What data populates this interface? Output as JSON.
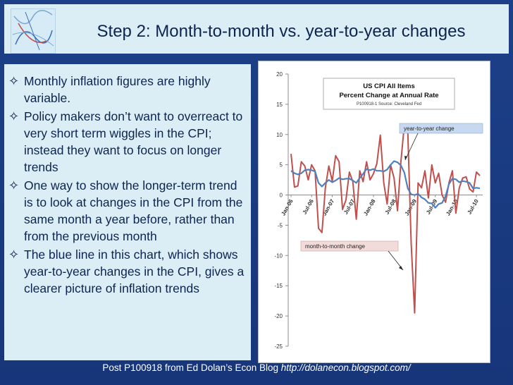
{
  "slide": {
    "title": "Step 2: Month-to-month vs. year-to-year changes",
    "bullets": [
      "Monthly inflation figures are highly variable.",
      "Policy makers don’t want to overreact to very short term wiggles in the CPI; instead they want to focus on longer trends",
      "One way to show the longer-term trend is to look at changes in the CPI from the same month a year before, rather than from the previous month",
      "The blue line in this chart, which shows year-to-year changes in the CPI, gives a clearer picture of inflation trends"
    ],
    "bullet_icon": "four-point-star-icon",
    "footer_text": "Post P100918 from Ed Dolan’s Econ Blog ",
    "footer_url": "http://dolanecon.blogspot.com/"
  },
  "colors": {
    "background": "#1a3c82",
    "panel": "#dbeef5",
    "title_text": "#0d2450",
    "month_line": "#c0504d",
    "year_line": "#4f81bd"
  },
  "chart_data": {
    "type": "line",
    "title": "US CPI All Items",
    "subtitle": "Percent Change at Annual Rate",
    "source": "P100918-1 Source: Cleveland Fed",
    "x": [
      "Jan-06",
      "Feb-06",
      "Mar-06",
      "Apr-06",
      "May-06",
      "Jun-06",
      "Jul-06",
      "Aug-06",
      "Sep-06",
      "Oct-06",
      "Nov-06",
      "Dec-06",
      "Jan-07",
      "Feb-07",
      "Mar-07",
      "Apr-07",
      "May-07",
      "Jun-07",
      "Jul-07",
      "Aug-07",
      "Sep-07",
      "Oct-07",
      "Nov-07",
      "Dec-07",
      "Jan-08",
      "Feb-08",
      "Mar-08",
      "Apr-08",
      "May-08",
      "Jun-08",
      "Jul-08",
      "Aug-08",
      "Sep-08",
      "Oct-08",
      "Nov-08",
      "Dec-08",
      "Jan-09",
      "Feb-09",
      "Mar-09",
      "Apr-09",
      "May-09",
      "Jun-09",
      "Jul-09",
      "Aug-09",
      "Sep-09",
      "Oct-09",
      "Nov-09",
      "Dec-09",
      "Jan-10",
      "Feb-10",
      "Mar-10",
      "Apr-10",
      "May-10",
      "Jun-10",
      "Jul-10",
      "Aug-10"
    ],
    "x_tick_labels": [
      "Jan-06",
      "Jul-06",
      "Jan-07",
      "Jul-07",
      "Jan-08",
      "Jul-08",
      "Jan-09",
      "Jul-09",
      "Jan-10",
      "Jul-10"
    ],
    "ylim": [
      -25,
      20
    ],
    "y_ticks": [
      20,
      15,
      10,
      5,
      0,
      -5,
      -10,
      -15,
      -20,
      -25
    ],
    "grid": false,
    "series": [
      {
        "name": "month-to-month change",
        "color": "#c0504d",
        "values": [
          6.8,
          1.3,
          1.5,
          5.5,
          4.8,
          2.5,
          5.0,
          4.0,
          -5.5,
          -6.2,
          1.2,
          4.8,
          2.3,
          6.5,
          5.5,
          -2.4,
          -0.8,
          3.8,
          2.2,
          -4.0,
          4.0,
          2.2,
          5.5,
          2.5,
          3.5,
          5.2,
          9.9,
          2.0,
          -1.5,
          5.0,
          2.8,
          -2.6,
          5.5,
          11.6,
          10.5,
          -8.0,
          -19.5,
          2.0,
          1.2,
          4.0,
          -0.5,
          5.0,
          2.0,
          3.6,
          0.0,
          -1.2,
          2.0,
          4.0,
          -3.0,
          1.2,
          2.8,
          3.0,
          1.0,
          0.5,
          3.8,
          3.2
        ]
      },
      {
        "name": "year-to-year change",
        "color": "#4f81bd",
        "values": [
          4.0,
          3.6,
          3.4,
          3.6,
          4.1,
          4.2,
          4.1,
          3.9,
          2.0,
          1.4,
          2.0,
          2.5,
          2.1,
          2.4,
          2.8,
          2.6,
          2.7,
          2.7,
          2.4,
          2.0,
          2.8,
          3.5,
          4.3,
          4.1,
          4.3,
          4.0,
          4.0,
          3.9,
          4.2,
          5.0,
          5.6,
          5.4,
          4.9,
          3.7,
          1.1,
          0.1,
          0.0,
          0.2,
          -0.4,
          -0.7,
          -1.3,
          -1.4,
          -2.1,
          -1.5,
          -1.3,
          -0.2,
          1.8,
          2.7,
          2.6,
          2.1,
          2.3,
          2.2,
          2.0,
          1.1,
          1.2,
          1.1
        ]
      }
    ],
    "annotations": {
      "year_label": "year-to-year change",
      "month_label": "month-to-month change"
    }
  }
}
